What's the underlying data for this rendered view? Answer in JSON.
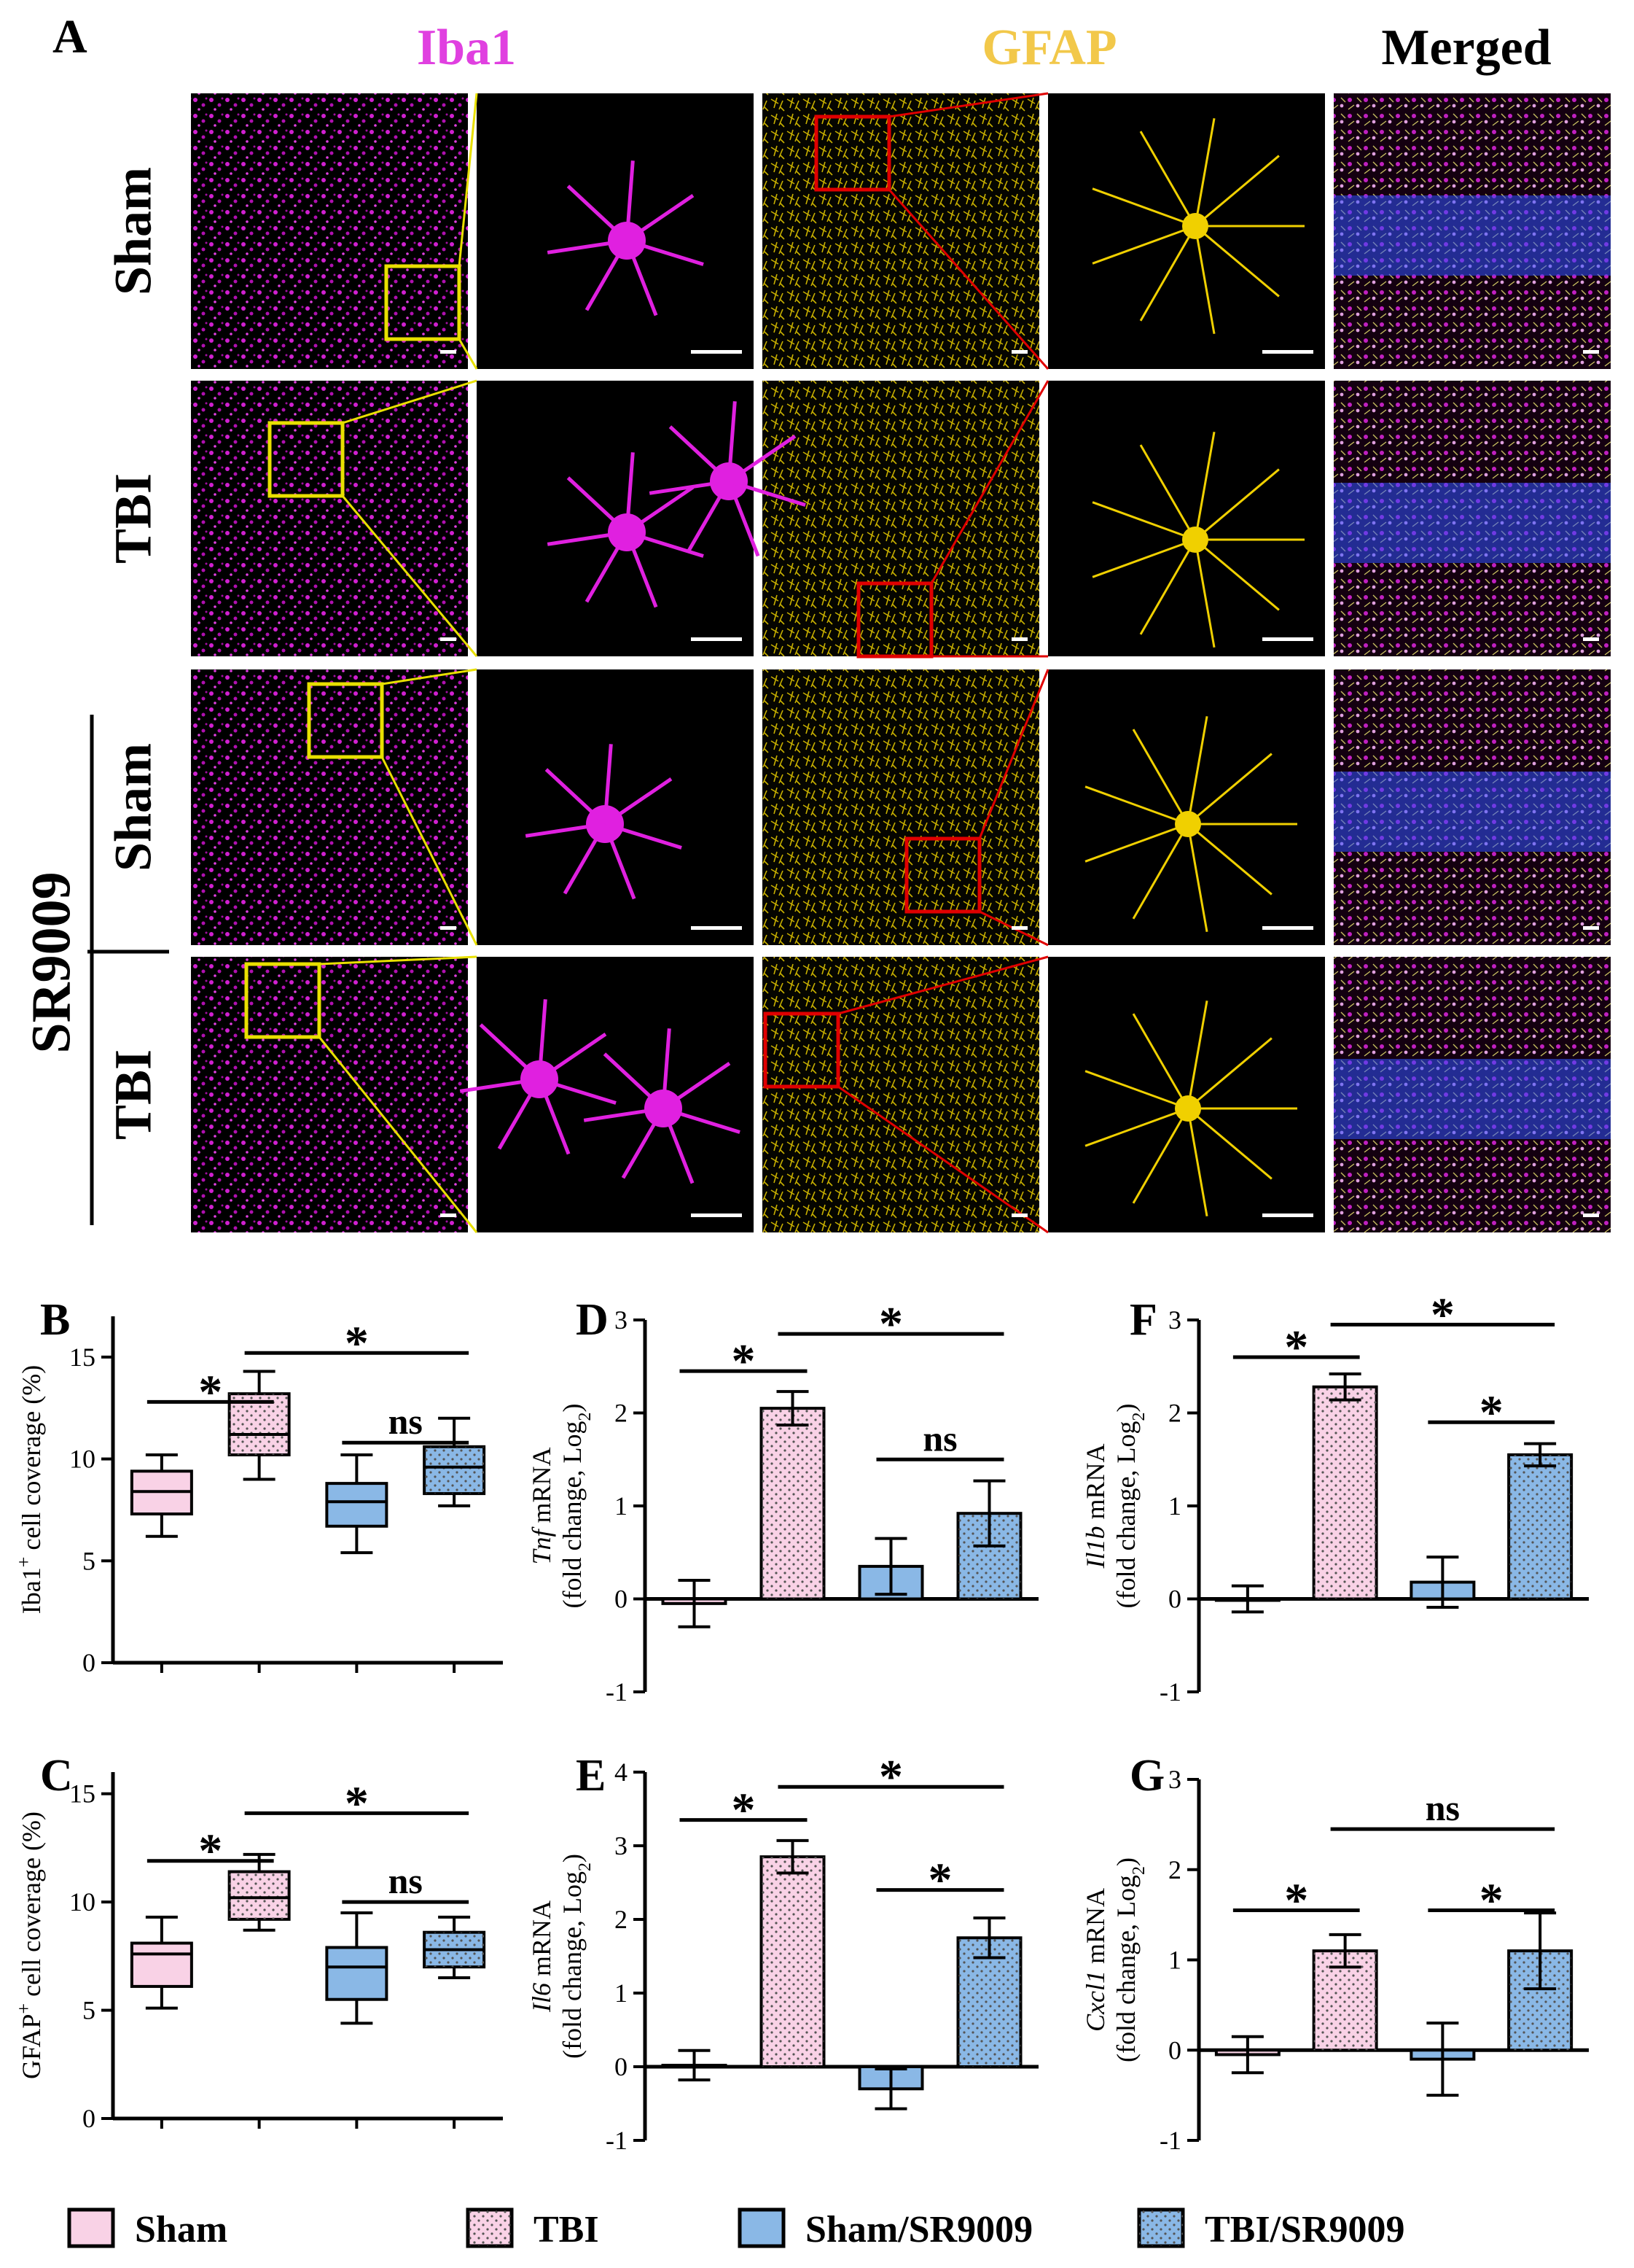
{
  "panelA": {
    "letter": "A",
    "col_titles": [
      "Iba1",
      "GFAP",
      "Merged"
    ],
    "row_labels": [
      "Sham",
      "TBI",
      "Sham",
      "TBI"
    ],
    "group_label": "SR9009",
    "colors": {
      "iba1": "#e020e0",
      "gfap": "#f0d000",
      "iba1_title": "#e040e0",
      "gfap_title": "#f2c84a",
      "merged_title": "#000000",
      "iba1_box": "#e8e000",
      "gfap_box": "#e00000",
      "dapi": "#3050ff"
    }
  },
  "legend": [
    {
      "name": "Sham",
      "fill": "#f9d2e6",
      "dotted": false
    },
    {
      "name": "TBI",
      "fill": "#f9d2e6",
      "dotted": true
    },
    {
      "name": "Sham/SR9009",
      "fill": "#8ab8e6",
      "dotted": false
    },
    {
      "name": "TBI/SR9009",
      "fill": "#8ab8e6",
      "dotted": true
    }
  ],
  "chart_data": [
    {
      "id": "B",
      "letter": "B",
      "type": "box",
      "ylabel_main": "Iba1",
      "ylabel_sup": "+",
      "ylabel_rest": " cell coverage (%)",
      "ylim": [
        0,
        17
      ],
      "yticks": [
        0,
        5,
        10,
        15
      ],
      "ytick_labels": [
        "0",
        "5",
        "10",
        "15"
      ],
      "groups": [
        "Sham",
        "TBI",
        "Sham/SR9009",
        "TBI/SR9009"
      ],
      "boxes": [
        {
          "min": 6.2,
          "q1": 7.3,
          "median": 8.4,
          "q3": 9.4,
          "max": 10.2
        },
        {
          "min": 9.0,
          "q1": 10.2,
          "median": 11.2,
          "q3": 13.2,
          "max": 14.3
        },
        {
          "min": 5.4,
          "q1": 6.7,
          "median": 7.9,
          "q3": 8.8,
          "max": 10.2
        },
        {
          "min": 7.7,
          "q1": 8.3,
          "median": 9.6,
          "q3": 10.6,
          "max": 12.0
        }
      ],
      "sig": [
        {
          "from": 0,
          "to": 1,
          "y": 12.8,
          "label": "*"
        },
        {
          "from": 1,
          "to": 3,
          "y": 15.2,
          "label": "*"
        },
        {
          "from": 2,
          "to": 3,
          "y": 10.8,
          "label": "ns"
        }
      ]
    },
    {
      "id": "C",
      "letter": "C",
      "type": "box",
      "ylabel_main": "GFAP",
      "ylabel_sup": "+",
      "ylabel_rest": " cell coverage (%)",
      "ylim": [
        0,
        16
      ],
      "yticks": [
        0,
        5,
        10,
        15
      ],
      "ytick_labels": [
        "0",
        "5",
        "10",
        "15"
      ],
      "groups": [
        "Sham",
        "TBI",
        "Sham/SR9009",
        "TBI/SR9009"
      ],
      "boxes": [
        {
          "min": 5.1,
          "q1": 6.1,
          "median": 7.6,
          "q3": 8.1,
          "max": 9.3
        },
        {
          "min": 8.7,
          "q1": 9.2,
          "median": 10.2,
          "q3": 11.4,
          "max": 12.2
        },
        {
          "min": 4.4,
          "q1": 5.5,
          "median": 7.0,
          "q3": 7.9,
          "max": 9.5
        },
        {
          "min": 6.5,
          "q1": 7.0,
          "median": 7.8,
          "q3": 8.6,
          "max": 9.3
        }
      ],
      "sig": [
        {
          "from": 0,
          "to": 1,
          "y": 11.9,
          "label": "*"
        },
        {
          "from": 1,
          "to": 3,
          "y": 14.1,
          "label": "*"
        },
        {
          "from": 2,
          "to": 3,
          "y": 10.0,
          "label": "ns"
        }
      ]
    },
    {
      "id": "D",
      "letter": "D",
      "type": "bar",
      "ylabel_gene": "Tnf",
      "ylabel_rest": " mRNA",
      "ylabel_line2": "(fold change, Log",
      "ylim": [
        -1,
        3
      ],
      "yticks": [
        -1,
        0,
        1,
        2,
        3
      ],
      "ytick_labels": [
        "-1",
        "0",
        "1",
        "2",
        "3"
      ],
      "groups": [
        "Sham",
        "TBI",
        "Sham/SR9009",
        "TBI/SR9009"
      ],
      "values": [
        -0.05,
        2.05,
        0.35,
        0.92
      ],
      "errors": [
        0.25,
        0.18,
        0.3,
        0.35
      ],
      "sig": [
        {
          "from": 0,
          "to": 1,
          "y": 2.45,
          "label": "*"
        },
        {
          "from": 1,
          "to": 3,
          "y": 2.85,
          "label": "*"
        },
        {
          "from": 2,
          "to": 3,
          "y": 1.5,
          "label": "ns"
        }
      ]
    },
    {
      "id": "E",
      "letter": "E",
      "type": "bar",
      "ylabel_gene": "Il6",
      "ylabel_rest": " mRNA",
      "ylabel_line2": "(fold change, Log",
      "ylim": [
        -1,
        4
      ],
      "yticks": [
        -1,
        0,
        1,
        2,
        3,
        4
      ],
      "ytick_labels": [
        "-1",
        "0",
        "1",
        "2",
        "3",
        "4"
      ],
      "groups": [
        "Sham",
        "TBI",
        "Sham/SR9009",
        "TBI/SR9009"
      ],
      "values": [
        0.02,
        2.85,
        -0.3,
        1.75
      ],
      "errors": [
        0.2,
        0.22,
        0.27,
        0.27
      ],
      "sig": [
        {
          "from": 0,
          "to": 1,
          "y": 3.35,
          "label": "*"
        },
        {
          "from": 1,
          "to": 3,
          "y": 3.8,
          "label": "*"
        },
        {
          "from": 2,
          "to": 3,
          "y": 2.4,
          "label": "*"
        }
      ]
    },
    {
      "id": "F",
      "letter": "F",
      "type": "bar",
      "ylabel_gene": "Il1b",
      "ylabel_rest": " mRNA",
      "ylabel_line2": "(fold change, Log",
      "ylim": [
        -1,
        3
      ],
      "yticks": [
        -1,
        0,
        1,
        2,
        3
      ],
      "ytick_labels": [
        "-1",
        "0",
        "1",
        "2",
        "3"
      ],
      "groups": [
        "Sham",
        "TBI",
        "Sham/SR9009",
        "TBI/SR9009"
      ],
      "values": [
        0.0,
        2.28,
        0.18,
        1.55
      ],
      "errors": [
        0.14,
        0.14,
        0.27,
        0.12
      ],
      "sig": [
        {
          "from": 0,
          "to": 1,
          "y": 2.6,
          "label": "*"
        },
        {
          "from": 1,
          "to": 3,
          "y": 2.95,
          "label": "*"
        },
        {
          "from": 2,
          "to": 3,
          "y": 1.9,
          "label": "*"
        }
      ]
    },
    {
      "id": "G",
      "letter": "G",
      "type": "bar",
      "ylabel_gene": "Cxcl1",
      "ylabel_rest": " mRNA",
      "ylabel_line2": "(fold change, Log",
      "ylim": [
        -1,
        3
      ],
      "yticks": [
        -1,
        0,
        1,
        2,
        3
      ],
      "ytick_labels": [
        "-1",
        "0",
        "1",
        "2",
        "3"
      ],
      "groups": [
        "Sham",
        "TBI",
        "Sham/SR9009",
        "TBI/SR9009"
      ],
      "values": [
        -0.05,
        1.1,
        -0.1,
        1.1
      ],
      "errors": [
        0.2,
        0.18,
        0.4,
        0.42
      ],
      "sig": [
        {
          "from": 0,
          "to": 1,
          "y": 1.55,
          "label": "*"
        },
        {
          "from": 1,
          "to": 3,
          "y": 2.45,
          "label": "ns"
        },
        {
          "from": 2,
          "to": 3,
          "y": 1.55,
          "label": "*"
        }
      ]
    }
  ]
}
